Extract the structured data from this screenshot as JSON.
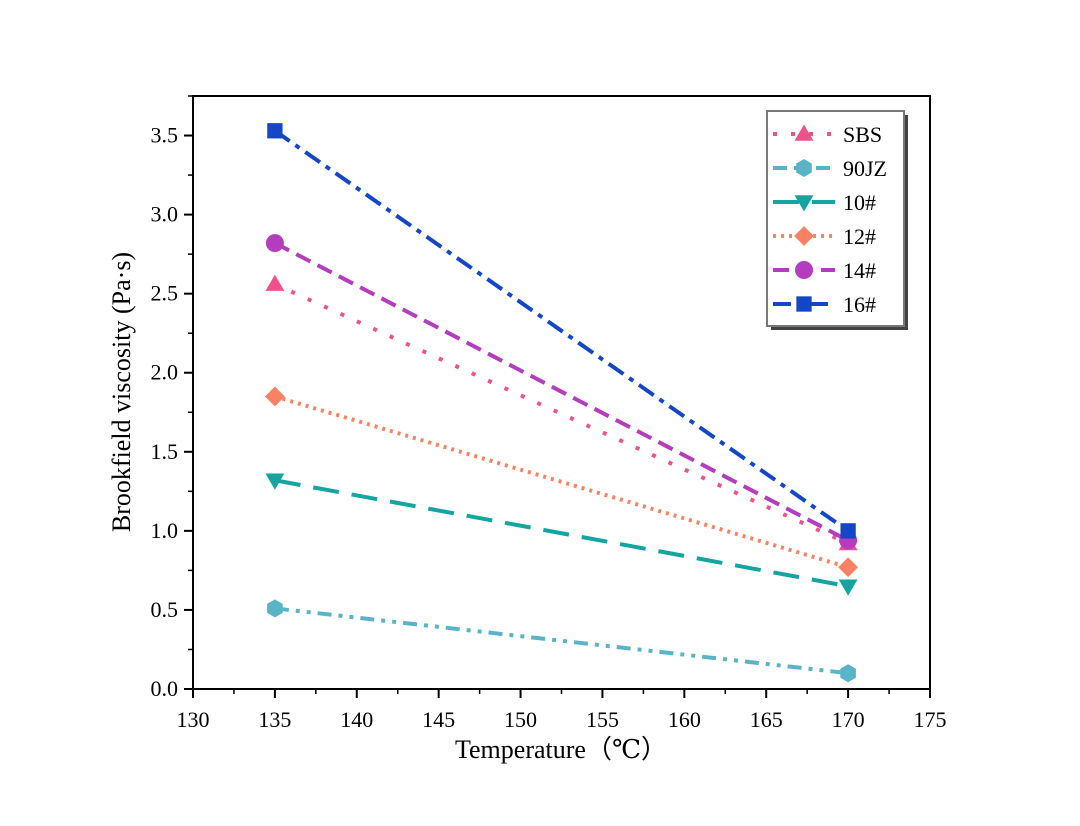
{
  "chart_data": {
    "type": "line",
    "title": "",
    "xlabel": "Temperature（℃）",
    "ylabel": "Brookfield viscosity (Pa·s)",
    "xlim": [
      130,
      175
    ],
    "ylim": [
      0,
      3.75
    ],
    "xticks": [
      "130",
      "135",
      "140",
      "145",
      "150",
      "155",
      "160",
      "165",
      "170",
      "175"
    ],
    "yticks": [
      "0.0",
      "0.5",
      "1.0",
      "1.5",
      "2.0",
      "2.5",
      "3.0",
      "3.5"
    ],
    "legend_position": "top-right",
    "x": [
      135,
      170
    ],
    "series": [
      {
        "name": "SBS",
        "values": [
          2.56,
          0.92
        ],
        "color": "#f0508c",
        "marker": "triangle-up",
        "dash": "dot-spaced"
      },
      {
        "name": "90JZ",
        "values": [
          0.51,
          0.1
        ],
        "color": "#5ab4c8",
        "marker": "hexagon",
        "dash": "dash-dot-dot"
      },
      {
        "name": "10#",
        "values": [
          1.32,
          0.65
        ],
        "color": "#14a5a0",
        "marker": "triangle-down",
        "dash": "long-dash"
      },
      {
        "name": "12#",
        "values": [
          1.85,
          0.77
        ],
        "color": "#fa8264",
        "marker": "diamond",
        "dash": "dot"
      },
      {
        "name": "14#",
        "values": [
          2.82,
          0.94
        ],
        "color": "#b43cbe",
        "marker": "circle",
        "dash": "dash"
      },
      {
        "name": "16#",
        "values": [
          3.53,
          1.0
        ],
        "color": "#1446c8",
        "marker": "square",
        "dash": "dash-dot"
      }
    ]
  }
}
